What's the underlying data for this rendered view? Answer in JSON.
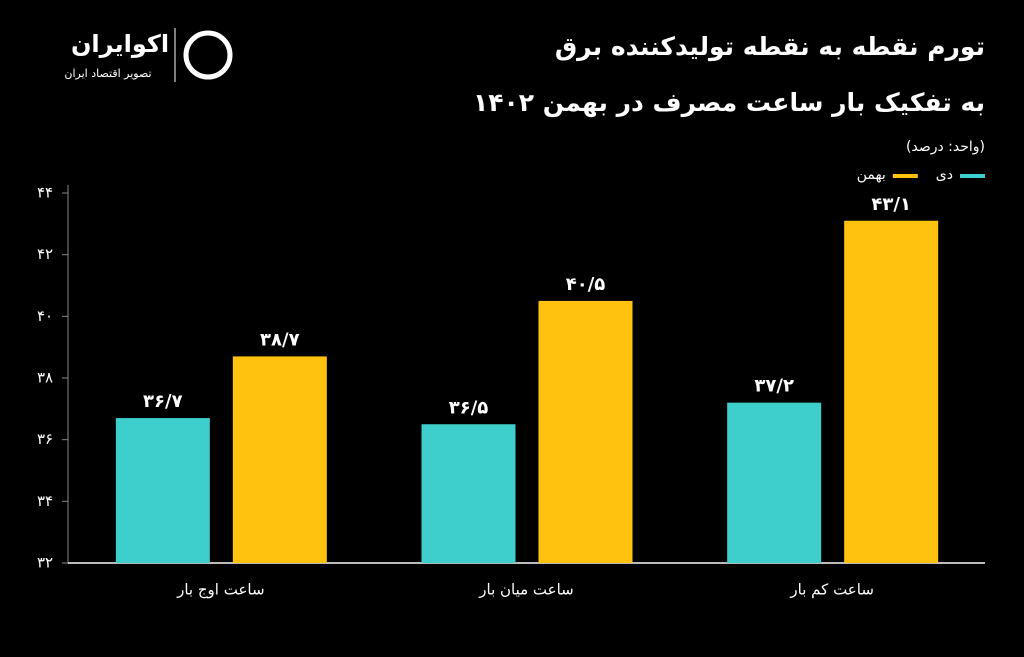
{
  "brand": {
    "name": "اکوایران",
    "tagline": "تصویر اقتصاد ایران"
  },
  "chart_data": {
    "type": "bar",
    "title": "تورم نقطه به نقطه تولیدکننده برق",
    "subtitle": "به تفکیک بار ساعت مصرف در بهمن ۱۴۰۲",
    "unit_note": "(واحد: درصد)",
    "categories": [
      "ساعت اوج بار",
      "ساعت میان بار",
      "ساعت کم بار"
    ],
    "series": [
      {
        "name": "دی",
        "color": "#3ecfcc",
        "values": [
          36.7,
          36.5,
          37.2
        ],
        "value_labels": [
          "۳۶/۷",
          "۳۶/۵",
          "۳۷/۲"
        ]
      },
      {
        "name": "بهمن",
        "color": "#ffc20e",
        "values": [
          38.7,
          40.5,
          43.1
        ],
        "value_labels": [
          "۳۸/۷",
          "۴۰/۵",
          "۴۳/۱"
        ]
      }
    ],
    "ylim": [
      32,
      44
    ],
    "yticks": [
      {
        "value": 32,
        "label": "۳۲"
      },
      {
        "value": 34,
        "label": "۳۴"
      },
      {
        "value": 36,
        "label": "۳۶"
      },
      {
        "value": 38,
        "label": "۳۸"
      },
      {
        "value": 40,
        "label": "۴۰"
      },
      {
        "value": 42,
        "label": "۴۲"
      },
      {
        "value": 44,
        "label": "۴۴"
      }
    ],
    "grid": false,
    "legend": "top-right"
  }
}
